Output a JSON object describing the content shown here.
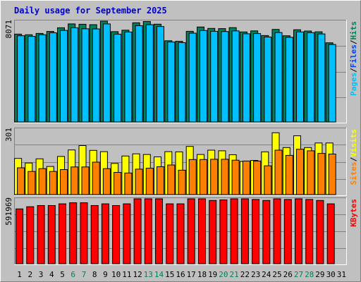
{
  "title": "Daily usage for September 2025",
  "colors": {
    "background": "#c0c0c0",
    "plot_area": "#c0c0c0",
    "hits": "#00805c",
    "files": "#0040ff",
    "pages": "#00c0ff",
    "visits": "#ffff00",
    "sites": "#ff8000",
    "kbytes": "#ff0000",
    "day_weekday": "#000000",
    "day_weekend": "#00805c",
    "title": "#0000cc"
  },
  "chart_data": [
    {
      "type": "bar",
      "panel": "hits-files-pages",
      "ymax_label": "8071",
      "ymax": 8071,
      "x": [
        "1",
        "2",
        "3",
        "4",
        "5",
        "6",
        "7",
        "8",
        "9",
        "10",
        "11",
        "12",
        "13",
        "14",
        "15",
        "16",
        "17",
        "18",
        "19",
        "20",
        "21",
        "22",
        "23",
        "24",
        "25",
        "26",
        "27",
        "28",
        "29",
        "30",
        "31"
      ],
      "legend": [
        {
          "label": "Hits",
          "color": "#00805c"
        },
        {
          "label": "Files",
          "color": "#0040ff"
        },
        {
          "label": "Pages",
          "color": "#00c0ff"
        }
      ],
      "series": [
        {
          "name": "Hits",
          "values": [
            7030,
            6980,
            7090,
            7250,
            7540,
            7850,
            7820,
            7790,
            8071,
            7230,
            7350,
            7940,
            8040,
            7830,
            6500,
            6460,
            7260,
            7600,
            7490,
            7470,
            7550,
            7210,
            7290,
            6920,
            7410,
            6900,
            7380,
            7280,
            7220,
            6340,
            null
          ]
        },
        {
          "name": "Pages",
          "values": [
            6900,
            6850,
            6990,
            7140,
            7330,
            7540,
            7460,
            7450,
            7850,
            7030,
            7200,
            7710,
            7790,
            7640,
            6400,
            6350,
            7110,
            7320,
            7260,
            7240,
            7290,
            7060,
            7080,
            6800,
            7160,
            6780,
            7210,
            7150,
            7050,
            6200,
            null
          ]
        }
      ]
    },
    {
      "type": "bar",
      "panel": "visits-sites",
      "ymax_label": "301",
      "ymax": 301,
      "x": [
        "1",
        "2",
        "3",
        "4",
        "5",
        "6",
        "7",
        "8",
        "9",
        "10",
        "11",
        "12",
        "13",
        "14",
        "15",
        "16",
        "17",
        "18",
        "19",
        "20",
        "21",
        "22",
        "23",
        "24",
        "25",
        "26",
        "27",
        "28",
        "29",
        "30",
        "31"
      ],
      "legend": [
        {
          "label": "Visits",
          "color": "#ffff00"
        },
        {
          "label": "Sites",
          "color": "#ff8000"
        }
      ],
      "series": [
        {
          "name": "Visits",
          "values": [
            166,
            145,
            164,
            129,
            175,
            205,
            225,
            203,
            197,
            143,
            177,
            187,
            184,
            173,
            197,
            196,
            221,
            184,
            204,
            201,
            183,
            152,
            157,
            196,
            284,
            216,
            270,
            216,
            237,
            237,
            null
          ]
        },
        {
          "name": "Sites",
          "values": [
            123,
            106,
            119,
            106,
            115,
            127,
            127,
            149,
            119,
            102,
            99,
            117,
            121,
            128,
            136,
            112,
            161,
            161,
            162,
            162,
            158,
            154,
            154,
            132,
            204,
            180,
            208,
            201,
            189,
            186,
            null
          ]
        }
      ]
    },
    {
      "type": "bar",
      "panel": "kbytes",
      "ymax_label": "591969",
      "ymax": 591969,
      "x": [
        "1",
        "2",
        "3",
        "4",
        "5",
        "6",
        "7",
        "8",
        "9",
        "10",
        "11",
        "12",
        "13",
        "14",
        "15",
        "16",
        "17",
        "18",
        "19",
        "20",
        "21",
        "22",
        "23",
        "24",
        "25",
        "26",
        "27",
        "28",
        "29",
        "30",
        "31"
      ],
      "legend": [
        {
          "label": "KBytes",
          "color": "#ff0000"
        }
      ],
      "series": [
        {
          "name": "KBytes",
          "values": [
            500000,
            520000,
            531000,
            531000,
            546000,
            556000,
            556000,
            531000,
            546000,
            531000,
            546000,
            591969,
            591969,
            591969,
            546000,
            546000,
            591969,
            591969,
            577000,
            582000,
            591969,
            591969,
            586000,
            577000,
            591969,
            586000,
            591969,
            586000,
            577000,
            546000,
            null
          ]
        }
      ]
    }
  ]
}
